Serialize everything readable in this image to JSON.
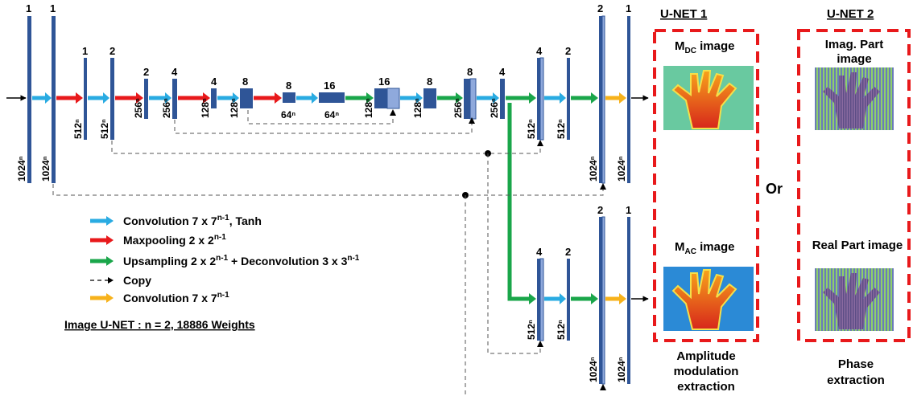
{
  "layer_top_labels": [
    "1",
    "1",
    "1",
    "2",
    "2",
    "4",
    "4",
    "8",
    "8",
    "16",
    "16",
    "8",
    "8",
    "4",
    "4",
    "2",
    "2",
    "1"
  ],
  "layer_side_labels": [
    "1024ⁿ",
    "1024ⁿ",
    "512ⁿ",
    "512ⁿ",
    "256ⁿ",
    "256ⁿ",
    "128ⁿ",
    "128ⁿ",
    "64ⁿ",
    "64ⁿ",
    "128ⁿ",
    "128ⁿ",
    "256ⁿ",
    "256ⁿ",
    "512ⁿ",
    "512ⁿ",
    "1024ⁿ",
    "1024ⁿ"
  ],
  "branch2": {
    "top_labels": [
      "4",
      "2",
      "2",
      "1"
    ],
    "side_labels": [
      "512ⁿ",
      "512ⁿ",
      "1024ⁿ",
      "1024ⁿ"
    ]
  },
  "legend": {
    "items": [
      {
        "color": "#29abe2",
        "text_main": "Convolution 7 x 7",
        "text_sup": "n-1",
        "text_tail": ", Tanh"
      },
      {
        "color": "#e8191b",
        "text_main": "Maxpooling 2 x 2",
        "text_sup": "n-1",
        "text_tail": ""
      },
      {
        "color": "#1aa64a",
        "text_main": "Upsampling 2 x 2",
        "text_sup": "n-1",
        "text_tail": " + Deconvolution 3 x 3",
        "text_sup2": "n-1"
      },
      {
        "color": "#000000",
        "text_main": "Copy",
        "text_sup": "",
        "text_tail": ""
      },
      {
        "color": "#f7b21b",
        "text_main": "Convolution 7 x 7",
        "text_sup": "n-1",
        "text_tail": ""
      }
    ],
    "note": "Image U-NET : n = 2,  18886 Weights"
  },
  "panels": {
    "unet1_title": "U-NET 1",
    "unet2_title": "U-NET 2",
    "or_label": "Or",
    "mdc_label_main": "M",
    "mdc_label_sub": "DC",
    "mdc_label_tail": " image",
    "mac_label_main": "M",
    "mac_label_sub": "AC",
    "mac_label_tail": " image",
    "imag_label_line1": "Imag. Part",
    "imag_label_line2": "image",
    "real_label": "Real Part image",
    "caption1_line1": "Amplitude",
    "caption1_line2": "modulation",
    "caption1_line3": "extraction",
    "caption2_line1": "Phase",
    "caption2_line2": "extraction",
    "dashed_box_color": "#e8191b"
  }
}
